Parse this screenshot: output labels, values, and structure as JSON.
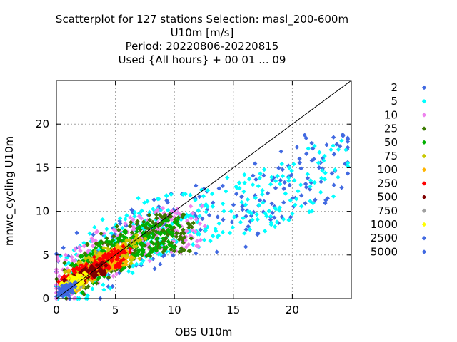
{
  "chart_data": {
    "type": "scatter",
    "title_lines": [
      "Scatterplot for  127 stations Selection: masl_200-600m",
      "U10m [m/s]",
      "Period: 20220806-20220815",
      "Used {All hours} + 00 01 ... 09"
    ],
    "xlabel": "OBS U10m",
    "ylabel": "mnwc_cycling U10m",
    "xlim": [
      0,
      25
    ],
    "ylim": [
      0,
      25
    ],
    "xticks": [
      0,
      5,
      10,
      15,
      20
    ],
    "yticks": [
      0,
      5,
      10,
      15,
      20
    ],
    "grid": true,
    "legend_position": "right",
    "diagonal": [
      [
        0,
        0
      ],
      [
        25,
        25
      ]
    ],
    "legend": [
      {
        "label": "2",
        "color": "#4169e1"
      },
      {
        "label": "5",
        "color": "#00ffff"
      },
      {
        "label": "10",
        "color": "#ee82ee"
      },
      {
        "label": "25",
        "color": "#3a7a00"
      },
      {
        "label": "50",
        "color": "#00b000"
      },
      {
        "label": "75",
        "color": "#c8c800"
      },
      {
        "label": "100",
        "color": "#ffb400"
      },
      {
        "label": "250",
        "color": "#ff0000"
      },
      {
        "label": "500",
        "color": "#800000"
      },
      {
        "label": "750",
        "color": "#a0a0a0"
      },
      {
        "label": "1000",
        "color": "#ffff00"
      },
      {
        "label": "2500",
        "color": "#4169e1"
      },
      {
        "label": "5000",
        "color": "#4169e1"
      }
    ],
    "density_bands": [
      {
        "label": "2",
        "center": [
          [
            0,
            1.2
          ],
          [
            5,
            5.2
          ],
          [
            10,
            8.5
          ],
          [
            15,
            9.5
          ],
          [
            20,
            13.5
          ],
          [
            24.5,
            16
          ]
        ],
        "halfwidth": 4.0,
        "count": 220
      },
      {
        "label": "5",
        "center": [
          [
            0,
            1.4
          ],
          [
            5,
            5.5
          ],
          [
            8,
            8.5
          ],
          [
            12,
            9.0
          ],
          [
            18,
            11.5
          ],
          [
            24.5,
            15.5
          ]
        ],
        "halfwidth": 3.4,
        "count": 320
      },
      {
        "label": "10",
        "center": [
          [
            0,
            1.5
          ],
          [
            4,
            5.0
          ],
          [
            8,
            7.5
          ],
          [
            12,
            8.5
          ]
        ],
        "halfwidth": 2.6,
        "count": 240
      },
      {
        "label": "25",
        "center": [
          [
            0.5,
            1.5
          ],
          [
            4,
            5.0
          ],
          [
            8,
            7.5
          ],
          [
            11,
            7.5
          ]
        ],
        "halfwidth": 2.2,
        "count": 240
      },
      {
        "label": "50",
        "center": [
          [
            1,
            1.8
          ],
          [
            4,
            4.5
          ],
          [
            7,
            6.5
          ],
          [
            10,
            7.5
          ]
        ],
        "halfwidth": 1.8,
        "count": 220
      },
      {
        "label": "75",
        "center": [
          [
            1,
            1.8
          ],
          [
            4,
            4.2
          ],
          [
            7,
            6.0
          ]
        ],
        "halfwidth": 1.4,
        "count": 160
      },
      {
        "label": "100",
        "center": [
          [
            1,
            1.6
          ],
          [
            4,
            4.0
          ],
          [
            6,
            5.3
          ]
        ],
        "halfwidth": 1.2,
        "count": 130
      },
      {
        "label": "250",
        "center": [
          [
            0.5,
            1.4
          ],
          [
            3,
            3.5
          ],
          [
            6,
            5.0
          ]
        ],
        "halfwidth": 1.0,
        "count": 150
      },
      {
        "label": "500",
        "center": [
          [
            0.5,
            1.2
          ],
          [
            2,
            2.5
          ],
          [
            4,
            3.5
          ]
        ],
        "halfwidth": 0.7,
        "count": 90
      },
      {
        "label": "750",
        "center": [
          [
            0.5,
            1.0
          ],
          [
            2,
            2.0
          ]
        ],
        "halfwidth": 0.6,
        "count": 50
      },
      {
        "label": "1000",
        "center": [
          [
            0.5,
            1.2
          ],
          [
            2.5,
            2.5
          ]
        ],
        "halfwidth": 0.7,
        "count": 60
      },
      {
        "label": "2500",
        "center": [
          [
            0.3,
            0.8
          ],
          [
            1.5,
            1.3
          ]
        ],
        "halfwidth": 0.6,
        "count": 70
      },
      {
        "label": "5000",
        "center": [
          [
            0.3,
            0.6
          ],
          [
            1,
            0.8
          ]
        ],
        "halfwidth": 0.4,
        "count": 30
      }
    ]
  }
}
